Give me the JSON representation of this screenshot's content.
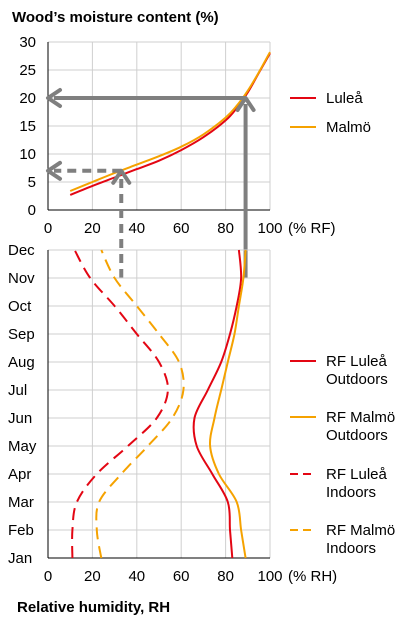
{
  "chart_data": [
    {
      "type": "line",
      "ylabel": "Wood’s moisture content (%)",
      "xunit": "(% RF)",
      "xlim": [
        0,
        100
      ],
      "ylim": [
        0,
        30
      ],
      "xticks": [
        "0",
        "20",
        "40",
        "60",
        "80",
        "100"
      ],
      "yticks": [
        "0",
        "5",
        "10",
        "15",
        "20",
        "25",
        "30"
      ],
      "series": [
        {
          "name": "Luleå",
          "color": "#e30613",
          "x": [
            10,
            20,
            30,
            40,
            50,
            60,
            70,
            80,
            85,
            90,
            95,
            100
          ],
          "y": [
            2.7,
            4.3,
            5.8,
            7.3,
            8.8,
            10.7,
            13.0,
            16.0,
            18.2,
            21.0,
            24.5,
            28.0
          ]
        },
        {
          "name": "Malmö",
          "color": "#f5a200",
          "x": [
            10,
            20,
            30,
            40,
            50,
            60,
            70,
            80,
            85,
            90,
            95,
            100
          ],
          "y": [
            3.4,
            5.0,
            6.6,
            8.1,
            9.6,
            11.3,
            13.5,
            16.5,
            18.6,
            21.3,
            24.6,
            28.2
          ]
        }
      ],
      "annotations": [
        {
          "kind": "arrow",
          "style": "solid",
          "rh": 89,
          "moisture": 20
        },
        {
          "kind": "arrow",
          "style": "dashed",
          "rh": 33,
          "moisture": 7
        }
      ]
    },
    {
      "type": "line",
      "xlabel": "Relative humidity, RH",
      "xunit": "(% RH)",
      "xlim": [
        0,
        100
      ],
      "xticks": [
        "0",
        "20",
        "40",
        "60",
        "80",
        "100"
      ],
      "categories": [
        "Jan",
        "Feb",
        "Mar",
        "Apr",
        "May",
        "Jun",
        "Jul",
        "Aug",
        "Sep",
        "Oct",
        "Nov",
        "Dec"
      ],
      "series": [
        {
          "name": "RF Luleå Outdoors",
          "color": "#e30613",
          "dash": false,
          "values": [
            83,
            82,
            81,
            74,
            67,
            66,
            72,
            78,
            82,
            85,
            87,
            86
          ]
        },
        {
          "name": "RF Malmö Outdoors",
          "color": "#f5a200",
          "dash": false,
          "values": [
            89,
            87,
            85,
            77,
            73,
            75,
            78,
            81,
            84,
            86,
            88,
            89
          ]
        },
        {
          "name": "RF Luleå Indoors",
          "color": "#e30613",
          "dash": true,
          "values": [
            11,
            11,
            13,
            22,
            36,
            49,
            54,
            50,
            40,
            30,
            19,
            12
          ]
        },
        {
          "name": "RF Malmö Indoors",
          "color": "#f5a200",
          "dash": true,
          "values": [
            24,
            22,
            23,
            33,
            45,
            56,
            61,
            59,
            50,
            40,
            30,
            24
          ]
        }
      ],
      "legend": [
        {
          "line1": "RF Luleå",
          "line2": "Outdoors",
          "color": "#e30613",
          "dash": false
        },
        {
          "line1": "RF Malmö",
          "line2": "Outdoors",
          "color": "#f5a200",
          "dash": false
        },
        {
          "line1": "RF Luleå",
          "line2": "Indoors",
          "color": "#e30613",
          "dash": true
        },
        {
          "line1": "RF Malmö",
          "line2": "Indoors",
          "color": "#f5a200",
          "dash": true
        }
      ]
    }
  ],
  "colors": {
    "annotation_gray": "#7f7f7f",
    "axis": "#000000"
  }
}
